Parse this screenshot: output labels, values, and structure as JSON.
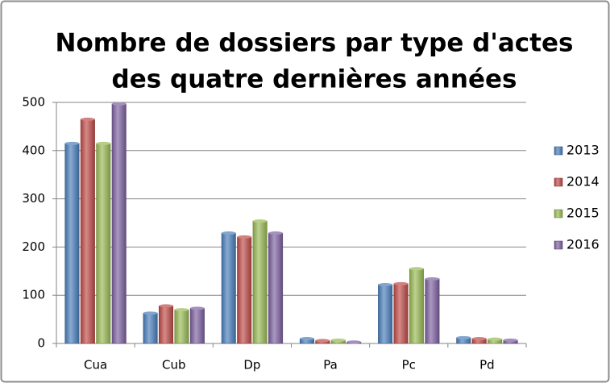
{
  "chart_data": {
    "type": "bar",
    "title": [
      "Nombre de dossiers par type d'actes",
      "des quatre dernières années"
    ],
    "categories": [
      "Cua",
      "Cub",
      "Dp",
      "Pa",
      "Pc",
      "Pd"
    ],
    "series": [
      {
        "name": "2013",
        "color": "#4a7ebb",
        "values": [
          415,
          63,
          229,
          10,
          122,
          12
        ]
      },
      {
        "name": "2014",
        "color": "#be4b48",
        "values": [
          465,
          78,
          221,
          6,
          124,
          10
        ]
      },
      {
        "name": "2015",
        "color": "#98b954",
        "values": [
          415,
          70,
          254,
          7,
          155,
          9
        ]
      },
      {
        "name": "2016",
        "color": "#7d60a0",
        "values": [
          497,
          73,
          229,
          3,
          134,
          7
        ]
      }
    ],
    "ylim": [
      0,
      500
    ],
    "yticks": [
      0,
      100,
      200,
      300,
      400,
      500
    ],
    "grid": true,
    "legend": "right"
  }
}
